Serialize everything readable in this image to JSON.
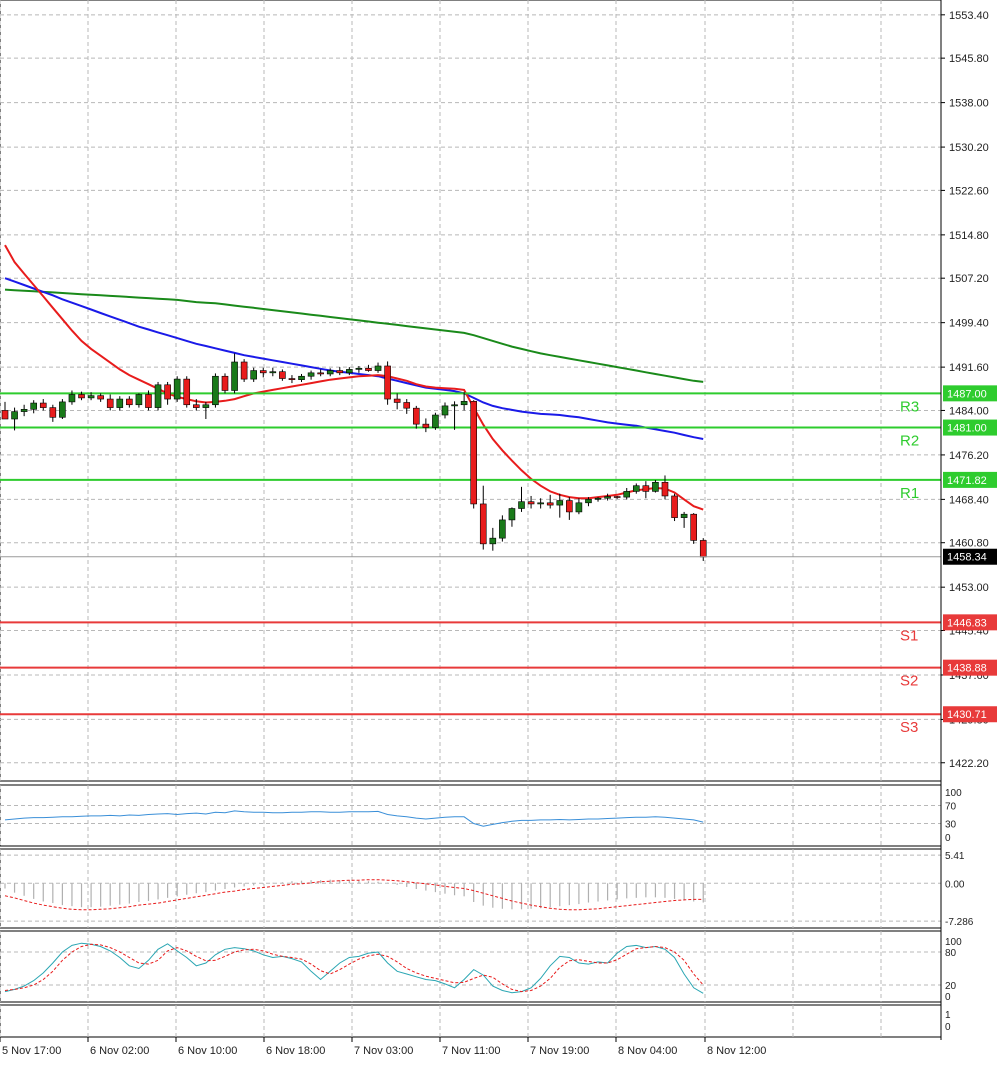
{
  "chart_data": {
    "type": "candlestick",
    "instrument_price_current": "1458.34",
    "main": {
      "ylim": [
        1419.0,
        1556.0
      ],
      "y_ticks": [
        "1553.40",
        "1545.80",
        "1538.00",
        "1530.20",
        "1522.60",
        "1514.80",
        "1507.20",
        "1499.40",
        "1491.60",
        "1484.00",
        "1476.20",
        "1468.40",
        "1460.80",
        "1453.00",
        "1445.40",
        "1437.60",
        "1429.80",
        "1422.20"
      ],
      "candles": [
        [
          1484.0,
          1485.5,
          1483.0,
          1482.5
        ],
        [
          1482.5,
          1484.5,
          1480.5,
          1483.8
        ],
        [
          1483.8,
          1485.0,
          1483.0,
          1484.2
        ],
        [
          1484.2,
          1485.8,
          1483.5,
          1485.3
        ],
        [
          1485.3,
          1486.0,
          1484.0,
          1484.5
        ],
        [
          1484.5,
          1485.0,
          1482.0,
          1482.8
        ],
        [
          1482.8,
          1486.0,
          1482.5,
          1485.5
        ],
        [
          1485.5,
          1487.5,
          1485.0,
          1486.8
        ],
        [
          1486.8,
          1487.3,
          1485.8,
          1486.2
        ],
        [
          1486.2,
          1487.2,
          1485.8,
          1486.6
        ],
        [
          1486.6,
          1487.0,
          1485.5,
          1486.0
        ],
        [
          1486.0,
          1486.8,
          1484.0,
          1484.5
        ],
        [
          1484.5,
          1486.5,
          1484.0,
          1486.0
        ],
        [
          1486.0,
          1486.5,
          1484.5,
          1485.0
        ],
        [
          1485.0,
          1487.0,
          1484.5,
          1486.8
        ],
        [
          1486.8,
          1487.5,
          1484.0,
          1484.5
        ],
        [
          1484.5,
          1489.0,
          1484.0,
          1488.5
        ],
        [
          1488.5,
          1489.0,
          1485.0,
          1486.0
        ],
        [
          1486.0,
          1490.0,
          1485.5,
          1489.5
        ],
        [
          1489.5,
          1490.0,
          1484.5,
          1485.0
        ],
        [
          1485.0,
          1486.0,
          1484.0,
          1484.5
        ],
        [
          1484.5,
          1485.5,
          1482.5,
          1485.0
        ],
        [
          1485.0,
          1490.5,
          1484.5,
          1490.0
        ],
        [
          1490.0,
          1490.5,
          1487.0,
          1487.5
        ],
        [
          1487.5,
          1494.0,
          1487.0,
          1492.5
        ],
        [
          1492.5,
          1493.0,
          1489.0,
          1489.5
        ],
        [
          1489.5,
          1491.5,
          1489.0,
          1491.0
        ],
        [
          1491.0,
          1491.5,
          1489.8,
          1490.6
        ],
        [
          1490.6,
          1491.5,
          1490.0,
          1490.8
        ],
        [
          1490.8,
          1491.2,
          1489.2,
          1489.6
        ],
        [
          1489.6,
          1490.2,
          1488.8,
          1489.4
        ],
        [
          1489.4,
          1490.4,
          1489.0,
          1490.0
        ],
        [
          1490.0,
          1491.0,
          1489.4,
          1490.6
        ],
        [
          1490.6,
          1491.2,
          1490.0,
          1490.4
        ],
        [
          1490.4,
          1491.4,
          1490.0,
          1491.0
        ],
        [
          1491.0,
          1491.6,
          1490.2,
          1490.6
        ],
        [
          1490.6,
          1491.6,
          1490.2,
          1491.2
        ],
        [
          1491.2,
          1491.8,
          1490.6,
          1491.4
        ],
        [
          1491.4,
          1492.0,
          1490.8,
          1491.0
        ],
        [
          1491.0,
          1492.4,
          1490.6,
          1491.8
        ],
        [
          1491.8,
          1492.6,
          1485.0,
          1486.0
        ],
        [
          1486.0,
          1487.0,
          1484.2,
          1485.4
        ],
        [
          1485.4,
          1486.0,
          1483.4,
          1484.4
        ],
        [
          1484.4,
          1484.8,
          1480.8,
          1481.6
        ],
        [
          1481.6,
          1482.6,
          1480.2,
          1481.0
        ],
        [
          1481.0,
          1483.6,
          1480.6,
          1483.2
        ],
        [
          1483.2,
          1485.4,
          1482.6,
          1484.8
        ],
        [
          1484.8,
          1485.6,
          1480.6,
          1485.0
        ],
        [
          1485.0,
          1487.2,
          1484.0,
          1485.6
        ],
        [
          1485.6,
          1485.8,
          1466.8,
          1467.6
        ],
        [
          1467.6,
          1470.8,
          1459.6,
          1460.6
        ],
        [
          1460.6,
          1463.4,
          1459.4,
          1461.6
        ],
        [
          1461.6,
          1465.6,
          1461.0,
          1464.8
        ],
        [
          1464.8,
          1467.0,
          1463.6,
          1466.8
        ],
        [
          1466.8,
          1470.6,
          1466.2,
          1468.0
        ],
        [
          1468.0,
          1469.0,
          1466.8,
          1467.6
        ],
        [
          1467.6,
          1468.6,
          1466.8,
          1467.8
        ],
        [
          1467.8,
          1469.2,
          1466.8,
          1467.4
        ],
        [
          1467.4,
          1469.4,
          1465.2,
          1468.2
        ],
        [
          1468.2,
          1468.8,
          1464.8,
          1466.2
        ],
        [
          1466.2,
          1468.6,
          1465.8,
          1467.8
        ],
        [
          1467.8,
          1468.8,
          1467.2,
          1468.4
        ],
        [
          1468.4,
          1468.8,
          1468.0,
          1468.6
        ],
        [
          1468.6,
          1469.4,
          1468.2,
          1468.9
        ],
        [
          1468.9,
          1469.0,
          1468.5,
          1468.8
        ],
        [
          1468.8,
          1470.4,
          1468.4,
          1469.8
        ],
        [
          1469.8,
          1471.2,
          1469.4,
          1470.8
        ],
        [
          1470.8,
          1471.6,
          1468.6,
          1469.8
        ],
        [
          1469.8,
          1471.8,
          1469.6,
          1471.4
        ],
        [
          1471.4,
          1472.6,
          1468.4,
          1469.0
        ],
        [
          1469.0,
          1469.4,
          1464.6,
          1465.2
        ],
        [
          1465.2,
          1466.2,
          1463.4,
          1465.8
        ],
        [
          1465.8,
          1466.0,
          1460.6,
          1461.2
        ],
        [
          1461.2,
          1461.6,
          1457.6,
          1458.3
        ]
      ],
      "ma_red": [
        1513.0,
        1510.0,
        1508.0,
        1506.0,
        1504.0,
        1502.0,
        1500.0,
        1498.0,
        1496.2,
        1494.8,
        1493.6,
        1492.4,
        1491.2,
        1490.2,
        1489.4,
        1488.6,
        1487.8,
        1487.0,
        1486.4,
        1486.0,
        1485.6,
        1485.4,
        1485.5,
        1485.7,
        1486.0,
        1486.5,
        1487.0,
        1487.3,
        1487.6,
        1487.9,
        1488.2,
        1488.5,
        1488.8,
        1489.1,
        1489.4,
        1489.6,
        1489.8,
        1490.0,
        1490.1,
        1490.2,
        1490.0,
        1489.6,
        1489.2,
        1488.6,
        1488.2,
        1488.0,
        1487.9,
        1487.8,
        1487.6,
        1484.5,
        1481.5,
        1479.0,
        1477.0,
        1475.2,
        1473.5,
        1472.0,
        1470.8,
        1469.8,
        1469.2,
        1468.8,
        1468.6,
        1468.6,
        1468.8,
        1469.0,
        1469.2,
        1469.6,
        1470.0,
        1470.2,
        1470.4,
        1470.3,
        1469.6,
        1468.4,
        1467.2,
        1466.6
      ],
      "ma_blue": [
        1507.2,
        1506.6,
        1506.0,
        1505.4,
        1504.8,
        1504.2,
        1503.5,
        1502.9,
        1502.3,
        1501.7,
        1501.1,
        1500.5,
        1499.9,
        1499.3,
        1498.7,
        1498.2,
        1497.7,
        1497.2,
        1496.7,
        1496.2,
        1495.7,
        1495.3,
        1494.9,
        1494.5,
        1494.1,
        1493.7,
        1493.4,
        1493.1,
        1492.8,
        1492.5,
        1492.2,
        1491.9,
        1491.6,
        1491.3,
        1491.0,
        1490.8,
        1490.6,
        1490.4,
        1490.2,
        1490.0,
        1489.6,
        1489.2,
        1488.8,
        1488.4,
        1488.0,
        1487.8,
        1487.6,
        1487.4,
        1487.0,
        1486.2,
        1485.4,
        1484.8,
        1484.4,
        1484.1,
        1483.8,
        1483.6,
        1483.4,
        1483.3,
        1483.2,
        1483.0,
        1482.8,
        1482.5,
        1482.2,
        1481.9,
        1481.7,
        1481.5,
        1481.3,
        1481.0,
        1480.7,
        1480.4,
        1480.1,
        1479.7,
        1479.3,
        1479.0
      ],
      "ma_green": [
        1505.2,
        1505.1,
        1505.0,
        1504.9,
        1504.8,
        1504.7,
        1504.6,
        1504.5,
        1504.4,
        1504.3,
        1504.2,
        1504.1,
        1504.0,
        1503.9,
        1503.8,
        1503.7,
        1503.6,
        1503.5,
        1503.4,
        1503.2,
        1503.0,
        1502.9,
        1502.8,
        1502.6,
        1502.4,
        1502.2,
        1502.0,
        1501.8,
        1501.6,
        1501.4,
        1501.2,
        1501.0,
        1500.8,
        1500.6,
        1500.4,
        1500.2,
        1500.0,
        1499.8,
        1499.6,
        1499.4,
        1499.2,
        1499.0,
        1498.8,
        1498.6,
        1498.4,
        1498.2,
        1498.0,
        1497.8,
        1497.6,
        1497.2,
        1496.7,
        1496.2,
        1495.7,
        1495.2,
        1494.8,
        1494.4,
        1494.0,
        1493.7,
        1493.4,
        1493.1,
        1492.8,
        1492.5,
        1492.2,
        1491.9,
        1491.6,
        1491.3,
        1491.0,
        1490.7,
        1490.4,
        1490.1,
        1489.8,
        1489.5,
        1489.2,
        1489.0
      ],
      "levels": [
        {
          "name": "R3",
          "value": 1487.0,
          "label": "1487.00",
          "kind": "resistance"
        },
        {
          "name": "R2",
          "value": 1481.0,
          "label": "1481.00",
          "kind": "resistance"
        },
        {
          "name": "R1",
          "value": 1471.82,
          "label": "1471.82",
          "kind": "resistance"
        },
        {
          "name": "S1",
          "value": 1446.83,
          "label": "1446.83",
          "kind": "support"
        },
        {
          "name": "S2",
          "value": 1438.88,
          "label": "1438.88",
          "kind": "support"
        },
        {
          "name": "S3",
          "value": 1430.71,
          "label": "1430.71",
          "kind": "support"
        }
      ]
    },
    "rsi": {
      "ylim": [
        0,
        100
      ],
      "y_ticks": [
        "100",
        "70",
        "30",
        "0"
      ],
      "values": [
        38,
        40,
        42,
        43,
        43,
        44,
        45,
        45,
        46,
        47,
        47,
        48,
        47,
        49,
        48,
        50,
        51,
        52,
        50,
        52,
        53,
        51,
        55,
        54,
        58,
        56,
        55,
        55,
        54,
        54,
        55,
        55,
        56,
        56,
        55,
        55,
        56,
        56,
        56,
        57,
        50,
        47,
        45,
        42,
        40,
        42,
        44,
        45,
        45,
        30,
        24,
        28,
        32,
        35,
        37,
        37,
        38,
        38,
        39,
        38,
        39,
        40,
        40,
        41,
        42,
        43,
        44,
        44,
        45,
        44,
        42,
        40,
        38,
        33
      ]
    },
    "macd": {
      "ylim": [
        -8.6,
        6.6
      ],
      "y_ticks": [
        "5.41",
        "0.00",
        "-7.286"
      ],
      "signal": [
        -2.4,
        -2.8,
        -3.3,
        -3.8,
        -4.2,
        -4.5,
        -4.8,
        -5.0,
        -5.1,
        -5.1,
        -5.0,
        -4.9,
        -4.7,
        -4.5,
        -4.2,
        -4.0,
        -3.8,
        -3.5,
        -3.2,
        -2.9,
        -2.6,
        -2.3,
        -2.0,
        -1.7,
        -1.5,
        -1.2,
        -1.0,
        -0.8,
        -0.6,
        -0.4,
        -0.2,
        -0.1,
        0.1,
        0.3,
        0.4,
        0.5,
        0.6,
        0.6,
        0.7,
        0.7,
        0.6,
        0.5,
        0.3,
        0.1,
        -0.1,
        -0.3,
        -0.6,
        -0.8,
        -1.0,
        -1.4,
        -1.9,
        -2.4,
        -2.9,
        -3.4,
        -3.8,
        -4.2,
        -4.5,
        -4.8,
        -5.0,
        -5.1,
        -5.1,
        -5.0,
        -4.9,
        -4.7,
        -4.5,
        -4.3,
        -4.1,
        -3.9,
        -3.7,
        -3.5,
        -3.3,
        -3.2,
        -3.1,
        -3.1
      ],
      "histogram": [
        -1.0,
        -1.8,
        -2.4,
        -3.0,
        -3.5,
        -3.8,
        -4.2,
        -4.4,
        -4.6,
        -4.6,
        -4.5,
        -4.3,
        -4.1,
        -3.9,
        -3.6,
        -3.4,
        -3.1,
        -2.8,
        -2.5,
        -2.2,
        -1.9,
        -1.7,
        -1.4,
        -1.1,
        -0.8,
        -0.6,
        -0.4,
        -0.2,
        0.1,
        0.2,
        0.4,
        0.5,
        0.6,
        0.6,
        0.7,
        0.6,
        0.6,
        0.5,
        0.4,
        0.3,
        0.1,
        -0.3,
        -0.7,
        -1.1,
        -1.4,
        -1.7,
        -2.0,
        -2.3,
        -2.5,
        -3.6,
        -4.3,
        -4.7,
        -4.9,
        -5.0,
        -5.0,
        -4.9,
        -4.8,
        -4.6,
        -4.4,
        -4.2,
        -4.0,
        -3.7,
        -3.5,
        -3.3,
        -3.1,
        -2.9,
        -2.8,
        -2.7,
        -2.7,
        -2.8,
        -3.0,
        -3.3,
        -3.5,
        -3.7
      ]
    },
    "stochastic": {
      "ylim": [
        0,
        100
      ],
      "y_ticks": [
        "100",
        "80",
        "20",
        "0"
      ],
      "k": [
        8,
        12,
        18,
        28,
        42,
        60,
        80,
        92,
        96,
        94,
        90,
        82,
        70,
        55,
        50,
        65,
        85,
        95,
        82,
        70,
        55,
        60,
        75,
        85,
        88,
        86,
        82,
        75,
        70,
        72,
        68,
        62,
        45,
        30,
        45,
        60,
        70,
        72,
        78,
        80,
        60,
        45,
        40,
        35,
        30,
        28,
        22,
        15,
        30,
        48,
        38,
        18,
        10,
        6,
        8,
        15,
        32,
        55,
        72,
        70,
        60,
        58,
        62,
        60,
        78,
        90,
        92,
        88,
        90,
        85,
        70,
        40,
        15,
        5
      ],
      "d": [
        10,
        12,
        15,
        20,
        30,
        45,
        65,
        80,
        90,
        94,
        93,
        88,
        80,
        70,
        60,
        58,
        65,
        82,
        88,
        82,
        72,
        64,
        65,
        72,
        80,
        84,
        85,
        82,
        76,
        72,
        70,
        67,
        58,
        46,
        40,
        48,
        58,
        67,
        73,
        76,
        72,
        62,
        50,
        42,
        36,
        32,
        28,
        24,
        25,
        32,
        38,
        34,
        22,
        12,
        8,
        10,
        18,
        32,
        52,
        64,
        66,
        63,
        60,
        60,
        66,
        76,
        86,
        88,
        90,
        88,
        80,
        65,
        40,
        20
      ]
    },
    "bottom_pane_ticks": [
      "1",
      "0"
    ],
    "x_labels": [
      "5 Nov 17:00",
      "6 Nov 02:00",
      "6 Nov 10:00",
      "6 Nov 18:00",
      "7 Nov 03:00",
      "7 Nov 11:00",
      "7 Nov 19:00",
      "8 Nov 04:00",
      "8 Nov 12:00"
    ]
  },
  "colors": {
    "bull": "#1a7a1a",
    "bear": "#e81c1c",
    "ma_red": "#e81c1c",
    "ma_blue": "#1a1ae8",
    "ma_green": "#1a8a1a",
    "resistance": "#2ecc2e",
    "support": "#e83a3a",
    "rsi": "#3a8fd8",
    "macd_signal": "#e81c1c",
    "macd_hist": "#b0b0b0",
    "stoch_k": "#2aa6b3",
    "stoch_d": "#e81c1c",
    "grid": "#b8b8b8"
  }
}
